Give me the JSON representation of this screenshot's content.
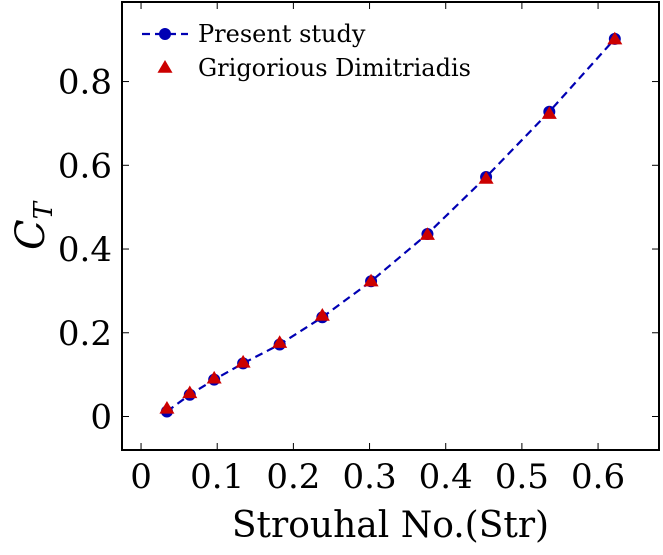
{
  "chart_data": {
    "type": "scatter",
    "title": "",
    "xlabel": "Strouhal No.(Str)",
    "ylabel": {
      "base": "C",
      "subscript": "T"
    },
    "xlim": [
      -0.025,
      0.68
    ],
    "ylim": [
      -0.08,
      0.99
    ],
    "xticks": [
      {
        "value": 0,
        "label": "0"
      },
      {
        "value": 0.1,
        "label": "0.1"
      },
      {
        "value": 0.2,
        "label": "0.2"
      },
      {
        "value": 0.3,
        "label": "0.3"
      },
      {
        "value": 0.4,
        "label": "0.4"
      },
      {
        "value": 0.5,
        "label": "0.5"
      },
      {
        "value": 0.6,
        "label": "0.6"
      }
    ],
    "yticks": [
      {
        "value": 0,
        "label": "0"
      },
      {
        "value": 0.2,
        "label": "0.2"
      },
      {
        "value": 0.4,
        "label": "0.4"
      },
      {
        "value": 0.6,
        "label": "0.6"
      },
      {
        "value": 0.8,
        "label": "0.8"
      }
    ],
    "grid": false,
    "legend_position": "top-left",
    "series": [
      {
        "name": "Present study",
        "style": "dashed-line-circle-markers",
        "color": "#0000b3",
        "x": [
          0.034,
          0.064,
          0.096,
          0.134,
          0.182,
          0.238,
          0.302,
          0.376,
          0.453,
          0.536,
          0.622
        ],
        "y": [
          0.012,
          0.052,
          0.088,
          0.127,
          0.172,
          0.237,
          0.323,
          0.436,
          0.572,
          0.728,
          0.902
        ]
      },
      {
        "name": "Grigorious Dimitriadis",
        "style": "triangle-markers",
        "color": "#cc0000",
        "x": [
          0.034,
          0.064,
          0.096,
          0.134,
          0.182,
          0.238,
          0.302,
          0.376,
          0.453,
          0.536,
          0.622
        ],
        "y": [
          0.018,
          0.055,
          0.09,
          0.128,
          0.175,
          0.24,
          0.322,
          0.433,
          0.567,
          0.722,
          0.9
        ]
      }
    ]
  }
}
